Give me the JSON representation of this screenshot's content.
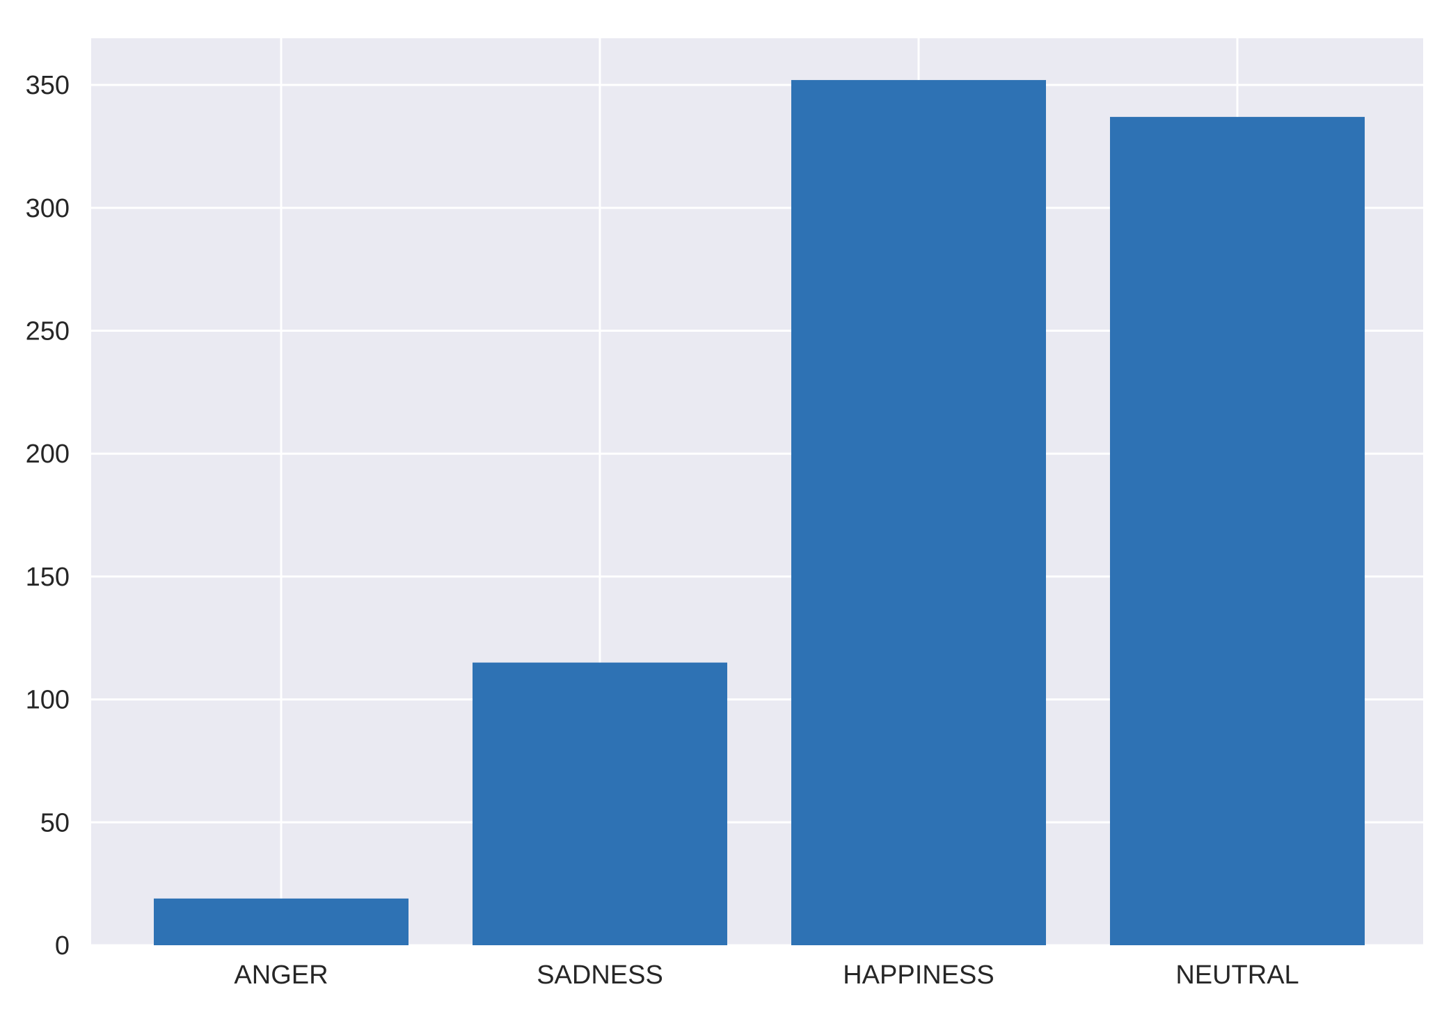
{
  "chart_data": {
    "type": "bar",
    "categories": [
      "ANGER",
      "SADNESS",
      "HAPPINESS",
      "NEUTRAL"
    ],
    "values": [
      19,
      115,
      352,
      337
    ],
    "title": "",
    "xlabel": "",
    "ylabel": "",
    "ylim": [
      0,
      369
    ],
    "yticks": [
      0,
      50,
      100,
      150,
      200,
      250,
      300,
      350
    ],
    "yticks_text": [
      "0",
      "50",
      "100",
      "150",
      "200",
      "250",
      "300",
      "350"
    ],
    "grid": true,
    "legend": "none",
    "colors": {
      "bar": "#2e72b4",
      "plot_background": "#eaeaf2",
      "grid": "#ffffff",
      "tick_text": "#262626"
    }
  }
}
